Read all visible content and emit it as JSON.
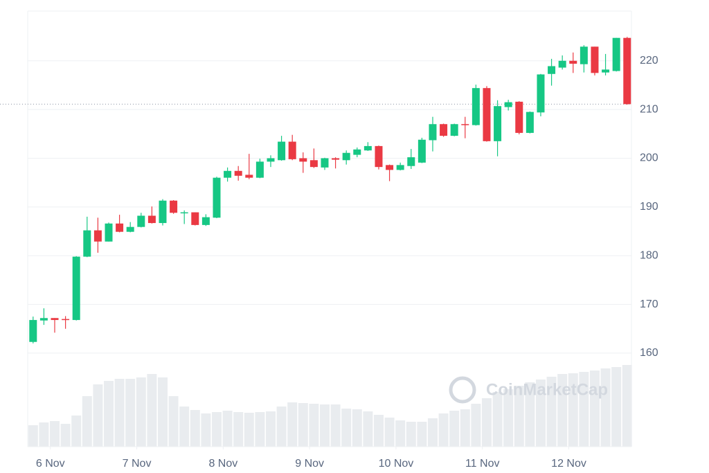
{
  "chart_data": {
    "type": "candlestick",
    "x": [
      0,
      1,
      2,
      3,
      4,
      5,
      6,
      7,
      8,
      9,
      10,
      11,
      12,
      13,
      14,
      15,
      16,
      17,
      18,
      19,
      20,
      21,
      22,
      23,
      24,
      25,
      26,
      27,
      28,
      29,
      30,
      31,
      32,
      33,
      34,
      35,
      36,
      37,
      38,
      39,
      40,
      41,
      42,
      43,
      44,
      45,
      46,
      47,
      48,
      49,
      50,
      51,
      52,
      53,
      54,
      55
    ],
    "open": [
      162.3,
      166.7,
      167.2,
      167.0,
      166.8,
      179.8,
      185.2,
      182.9,
      186.6,
      184.9,
      185.9,
      188.2,
      186.7,
      191.3,
      188.9,
      188.9,
      186.3,
      187.8,
      196.0,
      197.4,
      196.6,
      196.0,
      199.3,
      199.6,
      203.4,
      200.0,
      199.6,
      198.1,
      200.0,
      199.6,
      200.7,
      201.6,
      202.5,
      198.6,
      197.6,
      198.4,
      199.1,
      203.7,
      207.0,
      204.6,
      207.0,
      206.8,
      214.4,
      203.5,
      210.5,
      211.6,
      205.2,
      209.4,
      217.3,
      218.6,
      220.0,
      219.3,
      222.9,
      217.6,
      217.9,
      224.7
    ],
    "high": [
      167.5,
      169.2,
      167.2,
      167.6,
      179.9,
      188.0,
      187.8,
      186.8,
      188.4,
      186.9,
      188.8,
      190.1,
      191.6,
      191.4,
      189.3,
      188.9,
      188.5,
      196.2,
      198.1,
      198.4,
      200.9,
      199.9,
      200.6,
      204.6,
      204.8,
      201.2,
      202.0,
      200.1,
      200.2,
      201.6,
      202.2,
      203.3,
      202.6,
      198.7,
      199.1,
      201.9,
      204.2,
      208.5,
      207.1,
      207.1,
      208.5,
      215.1,
      214.8,
      211.9,
      212.0,
      211.7,
      209.6,
      217.3,
      220.4,
      221.1,
      221.7,
      223.2,
      222.9,
      221.4,
      224.7,
      224.9
    ],
    "low": [
      162.0,
      165.8,
      164.2,
      165.0,
      166.7,
      179.7,
      180.6,
      182.9,
      184.8,
      184.8,
      185.8,
      186.6,
      186.2,
      188.6,
      186.5,
      186.2,
      186.1,
      187.7,
      195.2,
      195.4,
      195.7,
      195.9,
      198.2,
      199.5,
      199.6,
      197.0,
      198.0,
      197.6,
      197.9,
      198.7,
      200.2,
      201.5,
      197.7,
      195.3,
      197.5,
      197.8,
      199.0,
      201.4,
      204.4,
      204.5,
      204.1,
      206.7,
      203.4,
      200.4,
      209.8,
      204.9,
      205.1,
      208.6,
      214.9,
      218.2,
      217.5,
      217.6,
      217.0,
      217.0,
      217.8,
      211.0
    ],
    "close": [
      166.8,
      167.2,
      166.8,
      166.9,
      179.8,
      185.2,
      182.9,
      186.6,
      184.9,
      185.9,
      188.2,
      186.7,
      191.3,
      188.8,
      188.9,
      186.3,
      187.9,
      196.0,
      197.4,
      196.4,
      196.0,
      199.3,
      200.0,
      203.4,
      199.8,
      199.3,
      198.2,
      200.0,
      199.7,
      201.1,
      201.8,
      202.5,
      198.2,
      197.6,
      198.6,
      200.2,
      203.8,
      207.0,
      204.6,
      207.0,
      206.8,
      214.4,
      203.5,
      210.7,
      211.5,
      205.2,
      209.5,
      217.2,
      218.9,
      220.0,
      219.4,
      222.9,
      217.5,
      218.2,
      224.7,
      211.1
    ],
    "up_color": "#16c784",
    "down_color": "#ea3943",
    "volume": {
      "color": "#e9ecef",
      "values": [
        31,
        35,
        37,
        33,
        45,
        73,
        90,
        95,
        98,
        98,
        100,
        105,
        100,
        73,
        58,
        53,
        48,
        50,
        52,
        50,
        49,
        50,
        51,
        58,
        64,
        63,
        62,
        61,
        61,
        55,
        54,
        51,
        46,
        42,
        38,
        36,
        36,
        41,
        48,
        52,
        54,
        62,
        70,
        79,
        83,
        88,
        93,
        97,
        101,
        105,
        106,
        108,
        110,
        113,
        115,
        118
      ]
    },
    "xlim": [
      -0.5,
      55.4
    ],
    "xticks": [
      {
        "value": 1.6,
        "label": "6 Nov"
      },
      {
        "value": 9.6,
        "label": "7 Nov"
      },
      {
        "value": 17.6,
        "label": "8 Nov"
      },
      {
        "value": 25.6,
        "label": "9 Nov"
      },
      {
        "value": 33.6,
        "label": "10 Nov"
      },
      {
        "value": 41.6,
        "label": "11 Nov"
      },
      {
        "value": 49.6,
        "label": "12 Nov"
      }
    ],
    "ylim": [
      140.8,
      230.2
    ],
    "yticks": [
      160,
      170,
      180,
      190,
      200,
      210,
      220
    ],
    "grid": true,
    "last_price": 211.1,
    "watermark": "CoinMarketCap"
  }
}
